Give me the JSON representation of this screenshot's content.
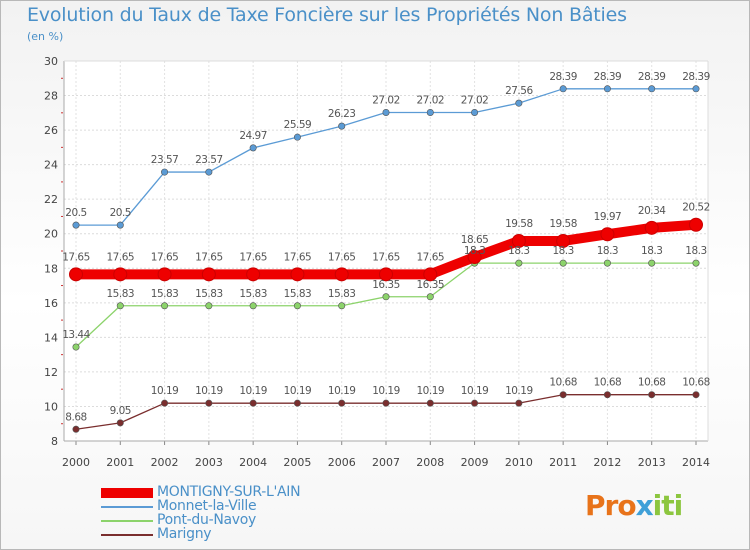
{
  "title": "Evolution du Taux de Taxe Foncière sur les Propriétés Non Bâties",
  "subtitle": "(en %)",
  "logo": {
    "part1": "Pro",
    "part2": "x",
    "part3": "iti"
  },
  "chart_data": {
    "type": "line",
    "title": "Evolution du Taux de Taxe Foncière sur les Propriétés Non Bâties",
    "ylabel": "(en %)",
    "xlabel": "",
    "ylim": [
      8,
      30
    ],
    "yticks": [
      8,
      10,
      12,
      14,
      16,
      18,
      20,
      22,
      24,
      26,
      28,
      30
    ],
    "grid": true,
    "legend_position": "bottom-left",
    "x": [
      "2000",
      "2001",
      "2002",
      "2003",
      "2004",
      "2005",
      "2006",
      "2007",
      "2008",
      "2009",
      "2010",
      "2011",
      "2012",
      "2013",
      "2014"
    ],
    "series": [
      {
        "name": "MONTIGNY-SUR-L'AIN",
        "color": "#ee0000",
        "thick": true,
        "values": [
          17.65,
          17.65,
          17.65,
          17.65,
          17.65,
          17.65,
          17.65,
          17.65,
          17.65,
          18.65,
          19.58,
          19.58,
          19.97,
          20.34,
          20.52
        ],
        "labels": [
          "17.65",
          "17.65",
          "17.65",
          "17.65",
          "17.65",
          "17.65",
          "17.65",
          "17.65",
          "17.65",
          "18.65",
          "19.58",
          "19.58",
          "19.97",
          "20.34",
          "20.52"
        ]
      },
      {
        "name": "Monnet-la-Ville",
        "color": "#5b9bd5",
        "values": [
          20.5,
          20.5,
          23.57,
          23.57,
          24.97,
          25.59,
          26.23,
          27.02,
          27.02,
          27.02,
          27.56,
          28.39,
          28.39,
          28.39,
          28.39
        ],
        "labels": [
          "20.5",
          "20.5",
          "23.57",
          "23.57",
          "24.97",
          "25.59",
          "26.23",
          "27.02",
          "27.02",
          "27.02",
          "27.56",
          "28.39",
          "28.39",
          "28.39",
          "28.39"
        ]
      },
      {
        "name": "Pont-du-Navoy",
        "color": "#8cd36b",
        "values": [
          13.44,
          15.83,
          15.83,
          15.83,
          15.83,
          15.83,
          15.83,
          16.35,
          16.35,
          18.3,
          18.3,
          18.3,
          18.3,
          18.3,
          18.3
        ],
        "labels": [
          "13.44",
          "15.83",
          "15.83",
          "15.83",
          "15.83",
          "15.83",
          "15.83",
          "16.35",
          "16.35",
          "18.3",
          "18.3",
          "18.3",
          "18.3",
          "18.3",
          "18.3"
        ]
      },
      {
        "name": "Marigny",
        "color": "#7a2e2e",
        "values": [
          8.68,
          9.05,
          10.19,
          10.19,
          10.19,
          10.19,
          10.19,
          10.19,
          10.19,
          10.19,
          10.19,
          10.68,
          10.68,
          10.68,
          10.68
        ],
        "labels": [
          "8.68",
          "9.05",
          "10.19",
          "10.19",
          "10.19",
          "10.19",
          "10.19",
          "10.19",
          "10.19",
          "10.19",
          "10.19",
          "10.68",
          "10.68",
          "10.68",
          "10.68"
        ]
      }
    ]
  }
}
